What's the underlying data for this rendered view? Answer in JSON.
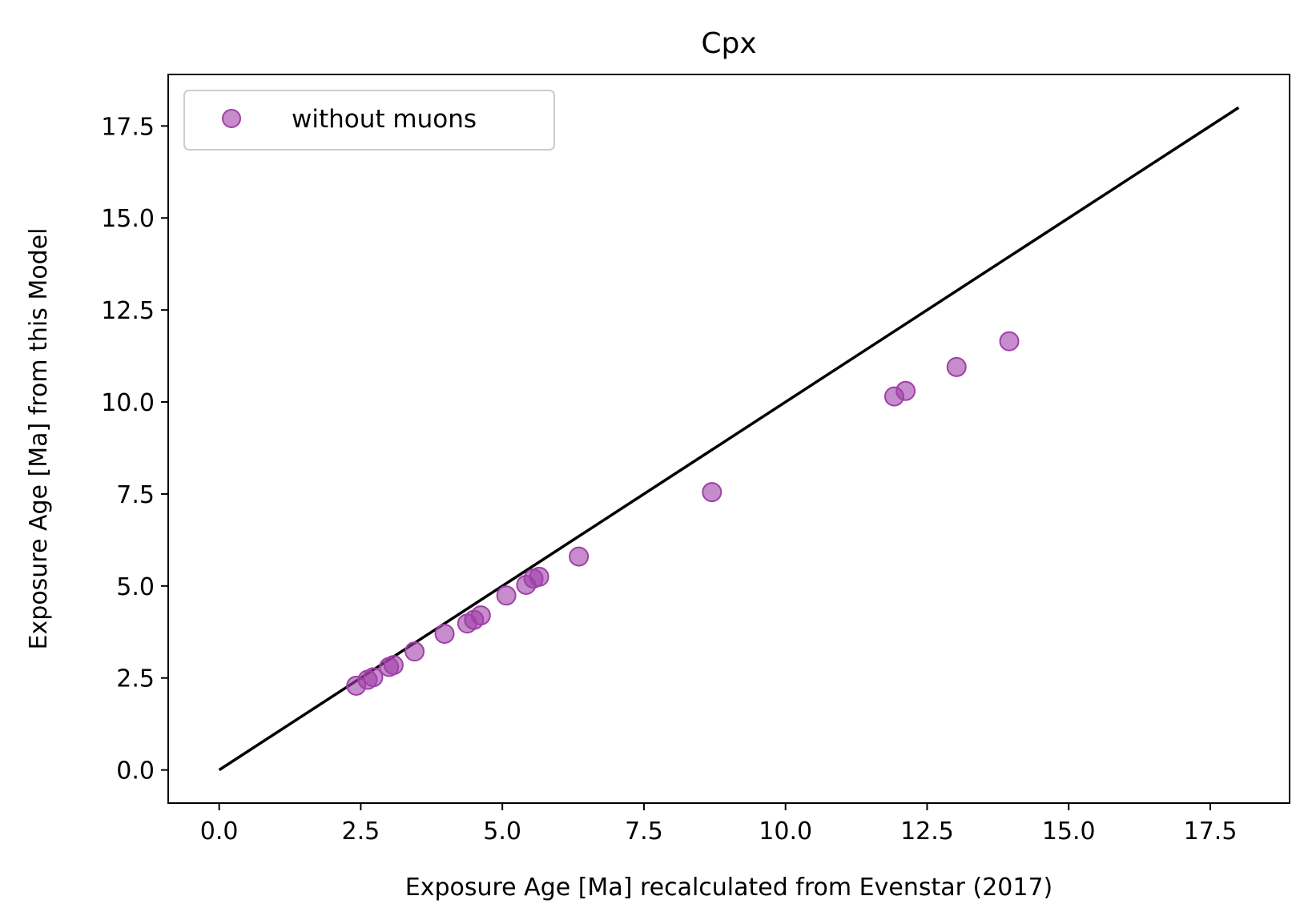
{
  "chart_data": {
    "type": "scatter",
    "title": "Cpx",
    "xlabel": "Exposure Age [Ma] recalculated from Evenstar (2017)",
    "ylabel": "Exposure Age [Ma] from this Model",
    "xlim": [
      -0.9,
      18.9
    ],
    "ylim": [
      -0.9,
      18.9
    ],
    "xticks": [
      "0.0",
      "2.5",
      "5.0",
      "7.5",
      "10.0",
      "12.5",
      "15.0",
      "17.5"
    ],
    "yticks": [
      "0.0",
      "2.5",
      "5.0",
      "7.5",
      "10.0",
      "12.5",
      "15.0",
      "17.5"
    ],
    "grid": false,
    "legend_position": "upper-left",
    "series": [
      {
        "name": "without muons",
        "marker": "circle",
        "color": "#a040a8",
        "points": [
          {
            "x": 2.42,
            "y": 2.29
          },
          {
            "x": 2.62,
            "y": 2.45
          },
          {
            "x": 2.72,
            "y": 2.52
          },
          {
            "x": 3.0,
            "y": 2.8
          },
          {
            "x": 3.08,
            "y": 2.85
          },
          {
            "x": 3.45,
            "y": 3.22
          },
          {
            "x": 3.98,
            "y": 3.7
          },
          {
            "x": 4.38,
            "y": 3.98
          },
          {
            "x": 4.5,
            "y": 4.08
          },
          {
            "x": 4.62,
            "y": 4.2
          },
          {
            "x": 5.07,
            "y": 4.74
          },
          {
            "x": 5.42,
            "y": 5.03
          },
          {
            "x": 5.55,
            "y": 5.2
          },
          {
            "x": 5.65,
            "y": 5.25
          },
          {
            "x": 6.35,
            "y": 5.8
          },
          {
            "x": 8.7,
            "y": 7.55
          },
          {
            "x": 11.92,
            "y": 10.15
          },
          {
            "x": 12.12,
            "y": 10.3
          },
          {
            "x": 13.02,
            "y": 10.95
          },
          {
            "x": 13.95,
            "y": 11.65
          }
        ]
      },
      {
        "name": "",
        "type": "line",
        "color": "#000000",
        "points": [
          {
            "x": 0,
            "y": 0
          },
          {
            "x": 18,
            "y": 18
          }
        ]
      }
    ]
  }
}
